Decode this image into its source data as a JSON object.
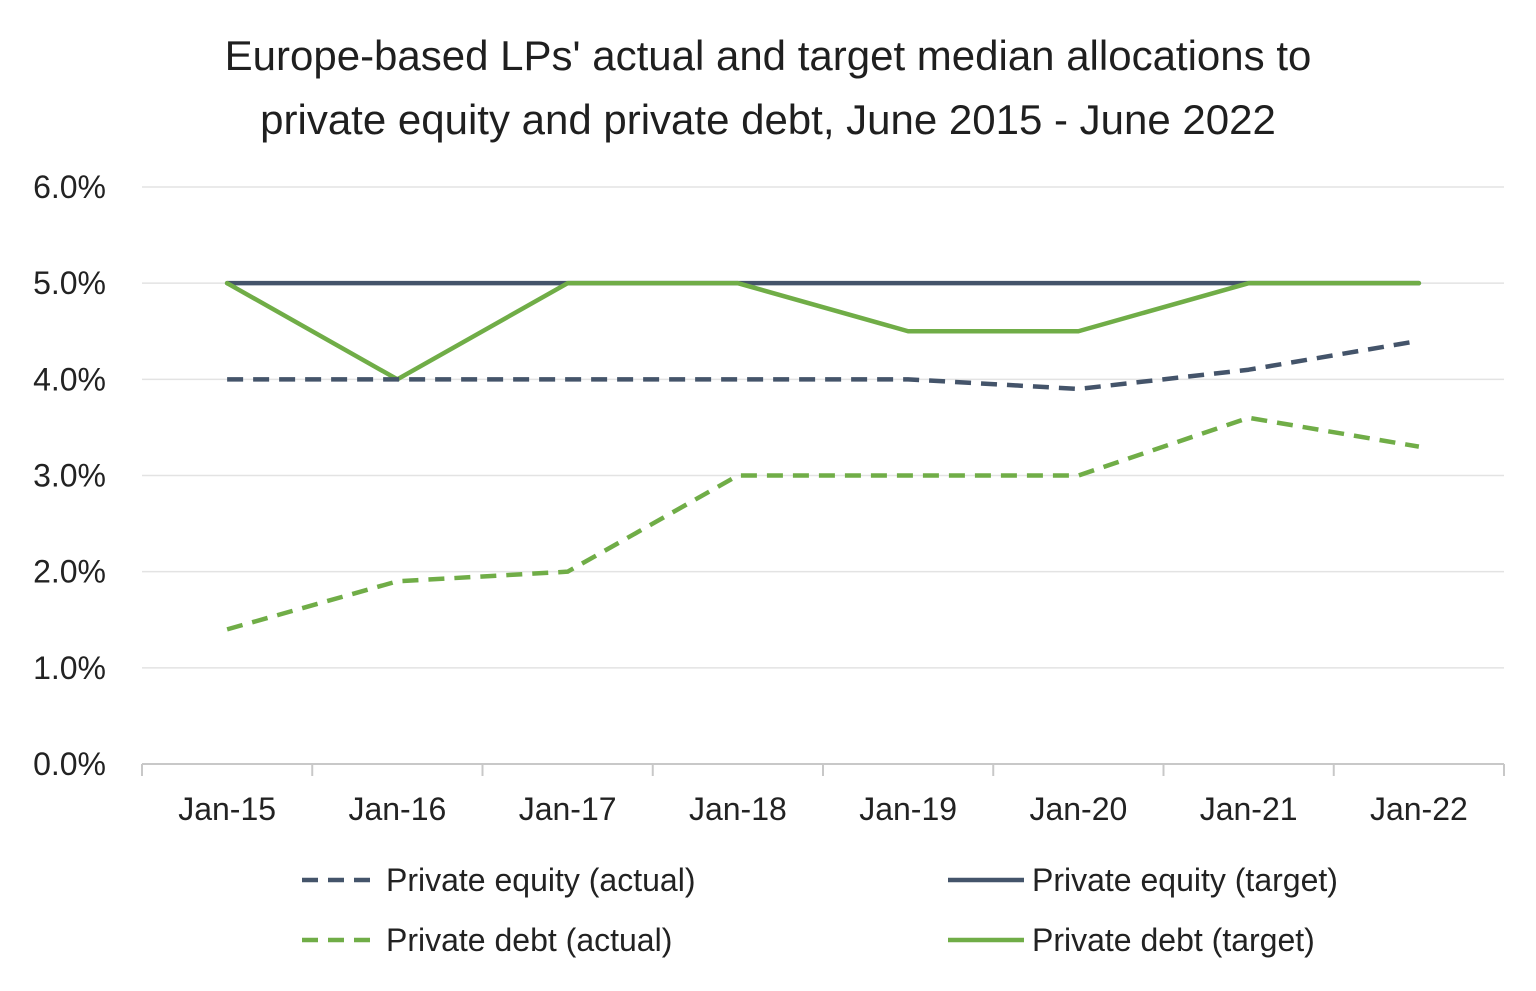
{
  "chart_data": {
    "type": "line",
    "title_lines": [
      "Europe-based LPs' actual and target median allocations to",
      "private equity and private debt, June 2015 - June 2022"
    ],
    "categories": [
      "Jan-15",
      "Jan-16",
      "Jan-17",
      "Jan-18",
      "Jan-19",
      "Jan-20",
      "Jan-21",
      "Jan-22"
    ],
    "y_ticks": [
      "0.0%",
      "1.0%",
      "2.0%",
      "3.0%",
      "4.0%",
      "5.0%",
      "6.0%"
    ],
    "ylim": [
      0,
      6
    ],
    "grid": true,
    "legend_position": "bottom",
    "series": [
      {
        "name": "Private equity (actual)",
        "color": "#44546a",
        "style": "dashed",
        "values": [
          4.0,
          4.0,
          4.0,
          4.0,
          4.0,
          3.9,
          4.1,
          4.4
        ]
      },
      {
        "name": "Private equity (target)",
        "color": "#44546a",
        "style": "solid",
        "values": [
          5.0,
          5.0,
          5.0,
          5.0,
          5.0,
          5.0,
          5.0,
          5.0
        ]
      },
      {
        "name": "Private debt (actual)",
        "color": "#70ad47",
        "style": "dashed",
        "values": [
          1.4,
          1.9,
          2.0,
          3.0,
          3.0,
          3.0,
          3.6,
          3.3
        ]
      },
      {
        "name": "Private debt (target)",
        "color": "#70ad47",
        "style": "solid",
        "values": [
          5.0,
          4.0,
          5.0,
          5.0,
          4.5,
          4.5,
          5.0,
          5.0
        ]
      }
    ]
  }
}
